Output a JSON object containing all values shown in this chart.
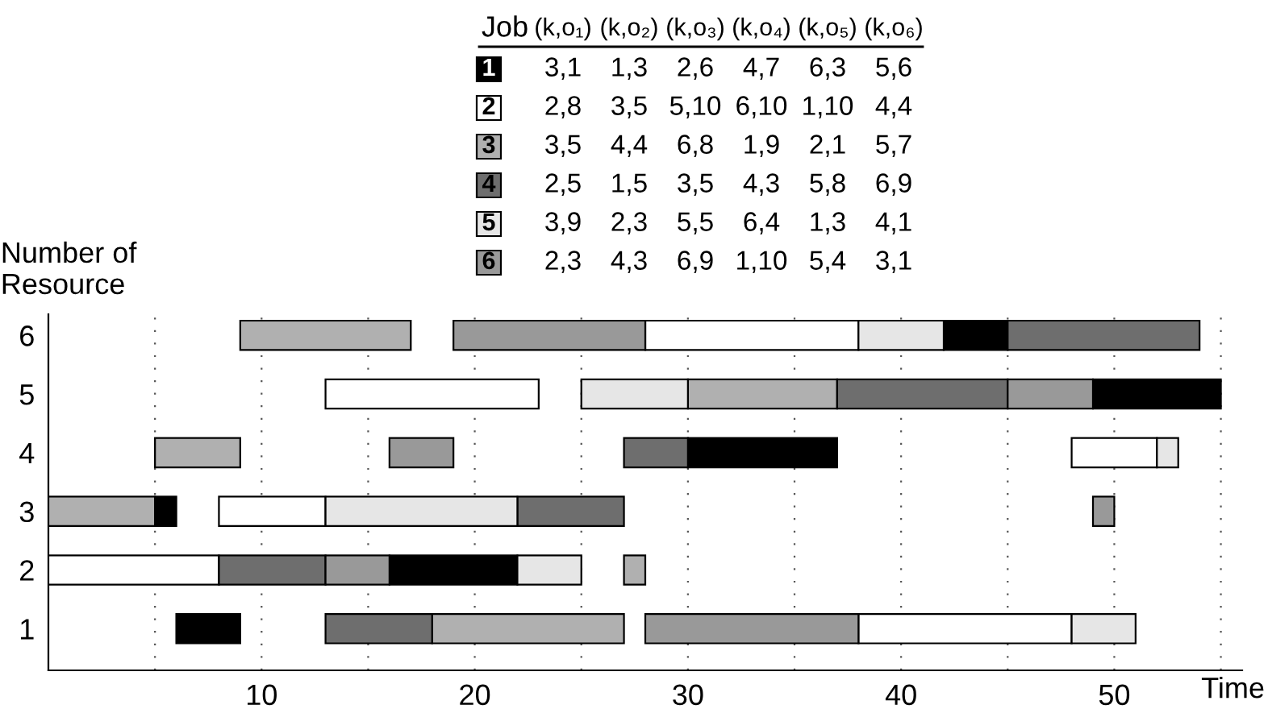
{
  "chart_data": {
    "type": "bar",
    "orientation": "horizontal",
    "categories": [
      "6",
      "5",
      "4",
      "3",
      "2",
      "1"
    ],
    "series": [
      {
        "name": "1",
        "color": "#000000",
        "values": [
          3,
          6,
          7,
          1,
          6,
          3
        ],
        "base": [
          42,
          49,
          30,
          5,
          16,
          6
        ]
      },
      {
        "name": "2",
        "color": "#ffffff",
        "values": [
          10,
          10,
          4,
          5,
          8,
          10
        ],
        "base": [
          28,
          13,
          48,
          8,
          0,
          38
        ]
      },
      {
        "name": "3",
        "color": "#b0b0b0",
        "values": [
          8,
          7,
          4,
          5,
          1,
          9
        ],
        "base": [
          9,
          30,
          5,
          0,
          27,
          18
        ]
      },
      {
        "name": "4",
        "color": "#6e6e6e",
        "values": [
          9,
          8,
          3,
          5,
          5,
          5
        ],
        "base": [
          45,
          37,
          27,
          22,
          8,
          13
        ]
      },
      {
        "name": "5",
        "color": "#e6e6e6",
        "values": [
          4,
          5,
          1,
          9,
          3,
          3
        ],
        "base": [
          38,
          25,
          52,
          13,
          22,
          48
        ]
      },
      {
        "name": "6",
        "color": "#999999",
        "values": [
          9,
          4,
          3,
          1,
          3,
          10
        ],
        "base": [
          19,
          45,
          16,
          49,
          13,
          28
        ]
      }
    ],
    "xlabel": "Time",
    "ylabel": "Number of\nResource",
    "xlim": [
      0,
      56
    ],
    "xticks": [
      {
        "value": 5,
        "label": null
      },
      10,
      {
        "value": 15,
        "label": null
      },
      20,
      {
        "value": 25,
        "label": null
      },
      30,
      {
        "value": 35,
        "label": null
      },
      40,
      {
        "value": 45,
        "label": null
      },
      50,
      {
        "value": 55,
        "label": null
      }
    ],
    "grid": "x",
    "legend": "top",
    "annotations": [
      "Job",
      "(k,o₁)",
      "(k,o₂)",
      "(k,o₃)",
      "(k,o₄)",
      "(k,o₅)",
      "(k,o₆)",
      "3,1",
      "1,3",
      "2,6",
      "4,7",
      "6,3",
      "5,6",
      "2,8",
      "3,5",
      "5,10",
      "6,10",
      "1,10",
      "4,4",
      "3,5",
      "4,4",
      "6,8",
      "1,9",
      "2,1",
      "5,7",
      "2,5",
      "1,5",
      "3,5",
      "4,3",
      "5,8",
      "6,9",
      "3,9",
      "2,3",
      "5,5",
      "6,4",
      "1,3",
      "4,1",
      "2,3",
      "4,3",
      "6,9",
      "1,10",
      "5,4",
      "3,1"
    ]
  }
}
